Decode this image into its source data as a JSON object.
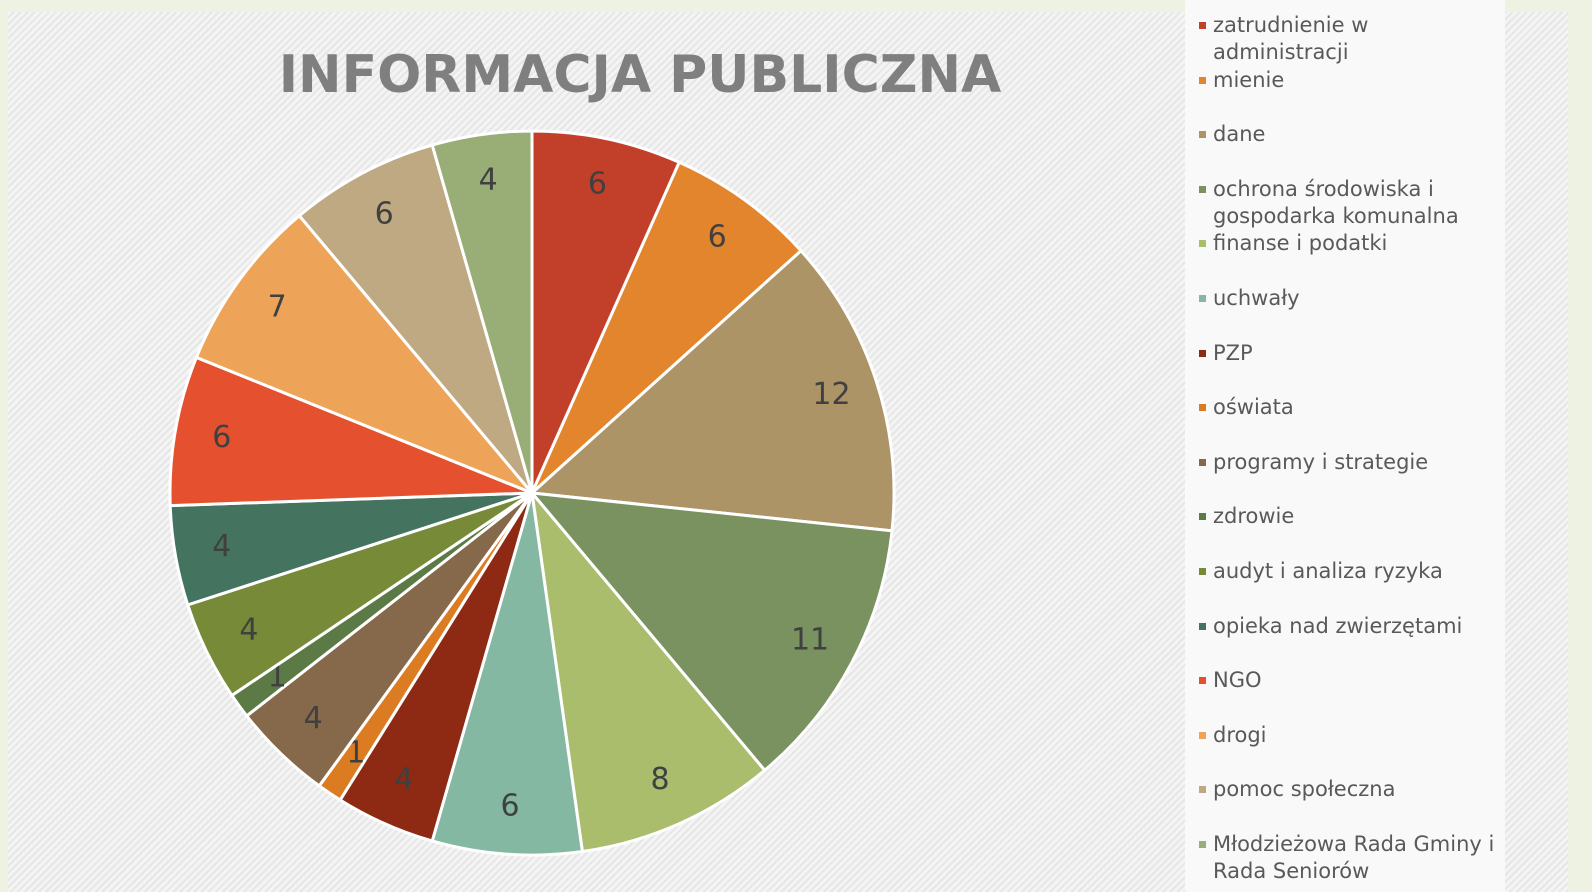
{
  "chart_data": {
    "type": "pie",
    "title": "INFORMACJA PUBLICZNA",
    "categories": [
      "zatrudnienie w administracji",
      "mienie",
      "dane",
      "ochrona środowiska i gospodarka komunalna",
      "finanse i podatki",
      "uchwały",
      "PZP",
      "oświata",
      "programy i strategie",
      "zdrowie",
      "audyt i analiza ryzyka",
      "opieka nad zwierzętami",
      "NGO",
      "drogi",
      "pomoc społeczna",
      "Młodzieżowa Rada Gminy i Rada Seniorów"
    ],
    "values": [
      6,
      6,
      12,
      11,
      8,
      6,
      4,
      1,
      4,
      1,
      4,
      4,
      6,
      7,
      6,
      4
    ],
    "colors": [
      "#c2402a",
      "#e3852c",
      "#ad9466",
      "#7a9160",
      "#a9bd6c",
      "#84b8a3",
      "#8e2a14",
      "#dc7c22",
      "#86694a",
      "#5b7a45",
      "#778a38",
      "#44745f",
      "#e5512f",
      "#eea458",
      "#bea983",
      "#99ae76"
    ],
    "legend": "right"
  }
}
